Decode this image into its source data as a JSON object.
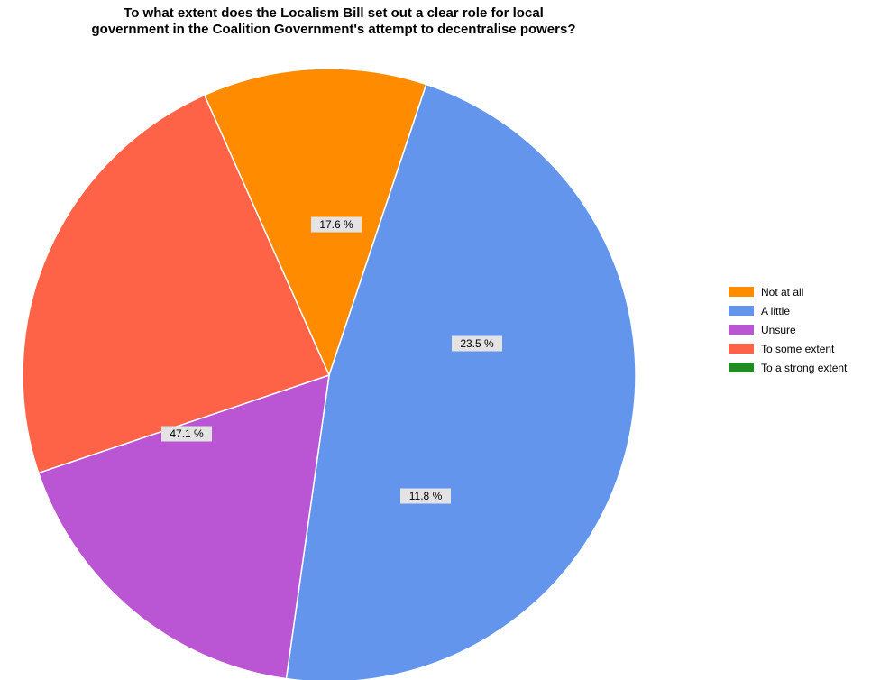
{
  "chart_data": {
    "type": "pie",
    "title": {
      "line1": "To what extent does the Localism Bill set out a clear role for local",
      "line2": "government in the Coalition Government's attempt to decentralise powers?"
    },
    "series": [
      {
        "name": "Not at all",
        "value": 11.8,
        "label": "11.8 %",
        "color": "#FF8C00"
      },
      {
        "name": "A little",
        "value": 47.1,
        "label": "47.1 %",
        "color": "#6495ED"
      },
      {
        "name": "Unsure",
        "value": 17.6,
        "label": "17.6 %",
        "color": "#BA55D3"
      },
      {
        "name": "To some extent",
        "value": 23.5,
        "label": "23.5 %",
        "color": "#FF6347"
      },
      {
        "name": "To a strong extent",
        "value": 0,
        "label": "",
        "color": "#228B22"
      }
    ],
    "legend_position": "right"
  }
}
